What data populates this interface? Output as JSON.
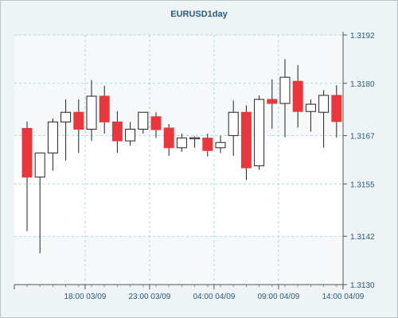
{
  "chart_data": {
    "type": "candlestick",
    "title": "EURUSD1day",
    "xlabel": "",
    "ylabel": "",
    "ylim": [
      1.313,
      1.3192
    ],
    "y_ticks": [
      "1.3192",
      "1.3180",
      "1.3167",
      "1.3155",
      "1.3142",
      "1.3130"
    ],
    "y_tick_values": [
      1.3192,
      1.318,
      1.3167,
      1.3155,
      1.3142,
      1.313
    ],
    "x_ticks": [
      "18:00 03/09",
      "23:00 03/09",
      "04:00 04/09",
      "09:00 04/09",
      "14:00 04/09"
    ],
    "x_tick_index": [
      4.5,
      9.5,
      14.5,
      19.5,
      24.5
    ],
    "grid": true,
    "up_color": "#ffffff",
    "down_color": "#e8383d",
    "candles": [
      {
        "o": 1.31688,
        "h": 1.31705,
        "l": 1.31433,
        "c": 1.31567
      },
      {
        "o": 1.31567,
        "h": 1.31625,
        "l": 1.31378,
        "c": 1.31627
      },
      {
        "o": 1.31627,
        "h": 1.31713,
        "l": 1.31583,
        "c": 1.31704
      },
      {
        "o": 1.31704,
        "h": 1.3176,
        "l": 1.31608,
        "c": 1.31728
      },
      {
        "o": 1.31728,
        "h": 1.3176,
        "l": 1.31627,
        "c": 1.31686
      },
      {
        "o": 1.31686,
        "h": 1.31808,
        "l": 1.31657,
        "c": 1.31768
      },
      {
        "o": 1.31768,
        "h": 1.31794,
        "l": 1.31675,
        "c": 1.31704
      },
      {
        "o": 1.31704,
        "h": 1.31731,
        "l": 1.31627,
        "c": 1.31657
      },
      {
        "o": 1.31657,
        "h": 1.31704,
        "l": 1.31645,
        "c": 1.31686
      },
      {
        "o": 1.31686,
        "h": 1.31728,
        "l": 1.31675,
        "c": 1.31728
      },
      {
        "o": 1.31717,
        "h": 1.31728,
        "l": 1.31664,
        "c": 1.31685
      },
      {
        "o": 1.31689,
        "h": 1.31699,
        "l": 1.3162,
        "c": 1.3164
      },
      {
        "o": 1.3164,
        "h": 1.31675,
        "l": 1.3163,
        "c": 1.31664
      },
      {
        "o": 1.31664,
        "h": 1.31668,
        "l": 1.3164,
        "c": 1.31665
      },
      {
        "o": 1.31664,
        "h": 1.31675,
        "l": 1.31618,
        "c": 1.31633
      },
      {
        "o": 1.3164,
        "h": 1.3167,
        "l": 1.31627,
        "c": 1.31653
      },
      {
        "o": 1.3167,
        "h": 1.31757,
        "l": 1.3162,
        "c": 1.31728
      },
      {
        "o": 1.31728,
        "h": 1.31745,
        "l": 1.3156,
        "c": 1.3159
      },
      {
        "o": 1.31595,
        "h": 1.3177,
        "l": 1.31585,
        "c": 1.3176
      },
      {
        "o": 1.3176,
        "h": 1.3181,
        "l": 1.31687,
        "c": 1.3175
      },
      {
        "o": 1.3175,
        "h": 1.3186,
        "l": 1.31666,
        "c": 1.31815
      },
      {
        "o": 1.31805,
        "h": 1.31845,
        "l": 1.3169,
        "c": 1.3173
      },
      {
        "o": 1.3173,
        "h": 1.3176,
        "l": 1.3168,
        "c": 1.31748
      },
      {
        "o": 1.31728,
        "h": 1.31783,
        "l": 1.3164,
        "c": 1.3177
      },
      {
        "o": 1.3177,
        "h": 1.31795,
        "l": 1.31665,
        "c": 1.31705
      }
    ]
  }
}
